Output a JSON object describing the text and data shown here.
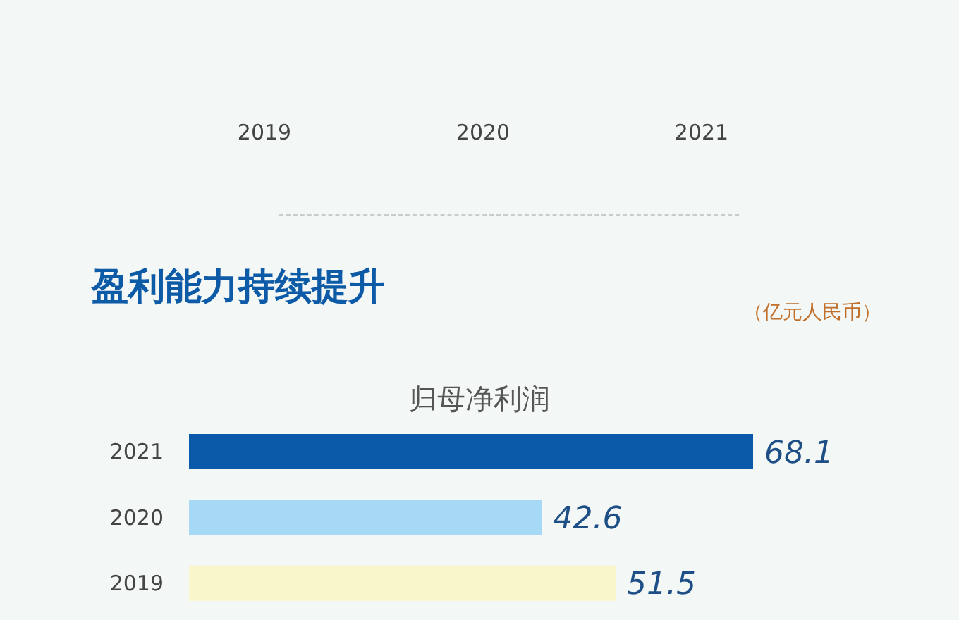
{
  "chart_data": [
    {
      "type": "other",
      "categories": [
        "2019",
        "2020",
        "2021"
      ]
    },
    {
      "type": "bar",
      "orientation": "horizontal",
      "title": "盈利能力持续提升",
      "subtitle": "归母净利润",
      "annotations": [
        "（亿元人民币）"
      ],
      "categories": [
        "2021",
        "2020",
        "2019"
      ],
      "values": [
        68.1,
        42.6,
        51.5
      ],
      "colors": [
        "#0b5aa9",
        "#a5d9f5",
        "#f9f6cc"
      ],
      "data_labels": true
    }
  ]
}
